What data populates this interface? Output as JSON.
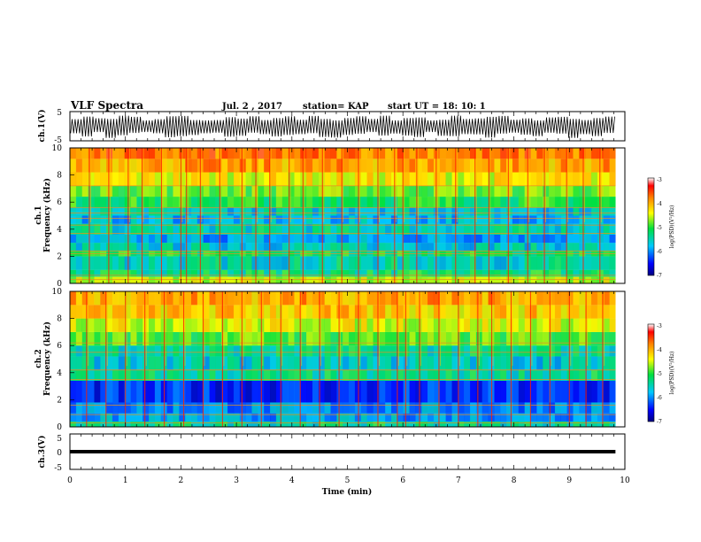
{
  "header": {
    "title": "VLF Spectra",
    "date": "Jul. 2 , 2017",
    "station": "station= KAP",
    "start": "start UT = 18: 10: 1"
  },
  "chart_data": [
    {
      "id": "ch1-waveform",
      "type": "line",
      "ylabel": "ch.1(V)",
      "ylim": [
        -5,
        5
      ],
      "yticks": [
        "5",
        "-5"
      ],
      "xlim": [
        0,
        10
      ],
      "x_end": 9.83,
      "series": [
        {
          "values_min": [
            -2.4,
            -3.5,
            -2.0,
            -4.0,
            -3.1,
            -2.3,
            -2.0,
            -2.4,
            -3.8,
            -3.4,
            -3.0,
            -2.4,
            -2.2,
            -3.6,
            -3.3,
            -2.2,
            -2.7,
            -3.5,
            -3.0,
            -2.7,
            -2.4,
            -3.7,
            -3.9,
            -3.0,
            -2.6,
            -2.0,
            -3.2,
            -2.5,
            -3.2,
            -3.7,
            -2.0,
            -3.3,
            -3.4,
            -2.7,
            -2.8,
            -3.9,
            -2.5,
            -2.2,
            -2.9,
            -3.4,
            -2.2,
            -2.5,
            -4.0,
            -2.7,
            -3.4,
            -2.3
          ],
          "values_max": [
            2.4,
            3.3,
            2.7,
            2.5,
            3.6,
            3.2,
            2.0,
            2.4,
            3.4,
            3.5,
            2.1,
            2.0,
            2.1,
            3.1,
            2.6,
            3.4,
            2.1,
            2.8,
            3.4,
            2.2,
            3.5,
            2.5,
            2.0,
            2.8,
            3.4,
            2.5,
            3.6,
            2.0,
            2.8,
            3.0,
            2.0,
            2.2,
            3.6,
            2.5,
            2.7,
            3.2,
            3.5,
            2.2,
            2.7,
            2.0,
            3.0,
            3.2,
            2.5,
            2.1,
            2.8,
            3.3
          ]
        }
      ]
    },
    {
      "id": "ch1-spectrogram",
      "type": "heatmap",
      "ylabel": "ch.1",
      "ylabel2": "Frequency (kHz)",
      "ylim": [
        0,
        10
      ],
      "yticks": [
        "0",
        "2",
        "4",
        "6",
        "8",
        "10"
      ],
      "xlim": [
        0,
        10
      ],
      "x_end": 9.83,
      "colorbar": {
        "label": "log(PSD)(V²/Hz)",
        "range": [
          -7,
          -3
        ],
        "ticks": [
          "-3",
          "-4",
          "-5",
          "-6",
          "-7"
        ]
      },
      "bands": [
        {
          "f": [
            0,
            0.5
          ],
          "v": -4.6
        },
        {
          "f": [
            0.5,
            1.0
          ],
          "v": -5.3
        },
        {
          "f": [
            1.0,
            2.0
          ],
          "v": -5.5
        },
        {
          "f": [
            2.0,
            2.4
          ],
          "v": -5.2
        },
        {
          "f": [
            2.4,
            3.0
          ],
          "v": -5.6
        },
        {
          "f": [
            3.0,
            3.6
          ],
          "v": -5.9
        },
        {
          "f": [
            3.6,
            4.4
          ],
          "v": -5.5
        },
        {
          "f": [
            4.4,
            5.0
          ],
          "v": -5.8
        },
        {
          "f": [
            5.0,
            5.6
          ],
          "v": -5.6
        },
        {
          "f": [
            5.6,
            6.4
          ],
          "v": -5.1
        },
        {
          "f": [
            6.4,
            7.2
          ],
          "v": -4.8
        },
        {
          "f": [
            7.2,
            8.2
          ],
          "v": -4.4
        },
        {
          "f": [
            8.2,
            9.2
          ],
          "v": -4.0
        },
        {
          "f": [
            9.2,
            10.0
          ],
          "v": -3.8
        }
      ],
      "harmonic_lines_khz": [
        0.3,
        0.6,
        2.2,
        2.4,
        3.7,
        4.3,
        4.8,
        5.2,
        5.6,
        7.2
      ],
      "bursts_min": [
        0.35,
        0.7,
        1.05,
        1.3,
        1.65,
        2.0,
        2.1,
        2.35,
        2.7,
        3.1,
        3.35,
        3.6,
        3.95,
        4.2,
        4.55,
        4.9,
        5.2,
        5.55,
        5.85,
        6.0,
        6.25,
        6.6,
        6.95,
        7.3,
        7.55,
        7.9,
        8.25,
        8.55,
        8.95,
        9.25,
        9.55
      ]
    },
    {
      "id": "ch2-spectrogram",
      "type": "heatmap",
      "ylabel": "ch.2",
      "ylabel2": "Frequency (kHz)",
      "ylim": [
        0,
        10
      ],
      "yticks": [
        "0",
        "2",
        "4",
        "6",
        "8",
        "10"
      ],
      "xlim": [
        0,
        10
      ],
      "x_end": 9.83,
      "colorbar": {
        "label": "log(PSD)(V²/Hz)",
        "range": [
          -7,
          -3
        ],
        "ticks": [
          "-3",
          "-4",
          "-5",
          "-6",
          "-7"
        ]
      },
      "bands": [
        {
          "f": [
            0,
            0.4
          ],
          "v": -5.4
        },
        {
          "f": [
            0.4,
            1.0
          ],
          "v": -5.9
        },
        {
          "f": [
            1.0,
            1.8
          ],
          "v": -6.0
        },
        {
          "f": [
            1.8,
            3.4
          ],
          "v": -6.4
        },
        {
          "f": [
            3.4,
            4.2
          ],
          "v": -5.4
        },
        {
          "f": [
            4.2,
            5.2
          ],
          "v": -5.6
        },
        {
          "f": [
            5.2,
            6.0
          ],
          "v": -5.4
        },
        {
          "f": [
            6.0,
            7.0
          ],
          "v": -4.9
        },
        {
          "f": [
            7.0,
            8.0
          ],
          "v": -4.5
        },
        {
          "f": [
            8.0,
            9.0
          ],
          "v": -4.2
        },
        {
          "f": [
            9.0,
            10.0
          ],
          "v": -4.0
        }
      ],
      "harmonic_lines_khz": [
        0.3,
        0.9,
        1.6,
        3.5,
        4.2,
        5.5,
        6.2
      ],
      "bursts_min": [
        0.3,
        0.65,
        1.0,
        1.35,
        1.7,
        2.05,
        2.4,
        2.75,
        3.1,
        3.45,
        3.8,
        4.15,
        4.5,
        4.85,
        5.2,
        5.55,
        5.9,
        6.05,
        6.3,
        6.65,
        7.0,
        7.35,
        7.6,
        7.95,
        8.3,
        8.65,
        9.0,
        9.3,
        9.6
      ]
    },
    {
      "id": "ch3-waveform",
      "type": "line",
      "ylabel": "ch.3(V)",
      "ylim": [
        -5,
        5
      ],
      "yticks": [
        "5",
        "0",
        "-5"
      ],
      "xlim": [
        0,
        10
      ],
      "x_end": 9.83,
      "series": [
        {
          "x": [
            0,
            9.83
          ],
          "y": [
            0,
            0
          ]
        }
      ]
    }
  ],
  "x_axis": {
    "label": "Time (min)",
    "ticks": [
      "0",
      "1",
      "2",
      "3",
      "4",
      "5",
      "6",
      "7",
      "8",
      "9",
      "10"
    ]
  }
}
